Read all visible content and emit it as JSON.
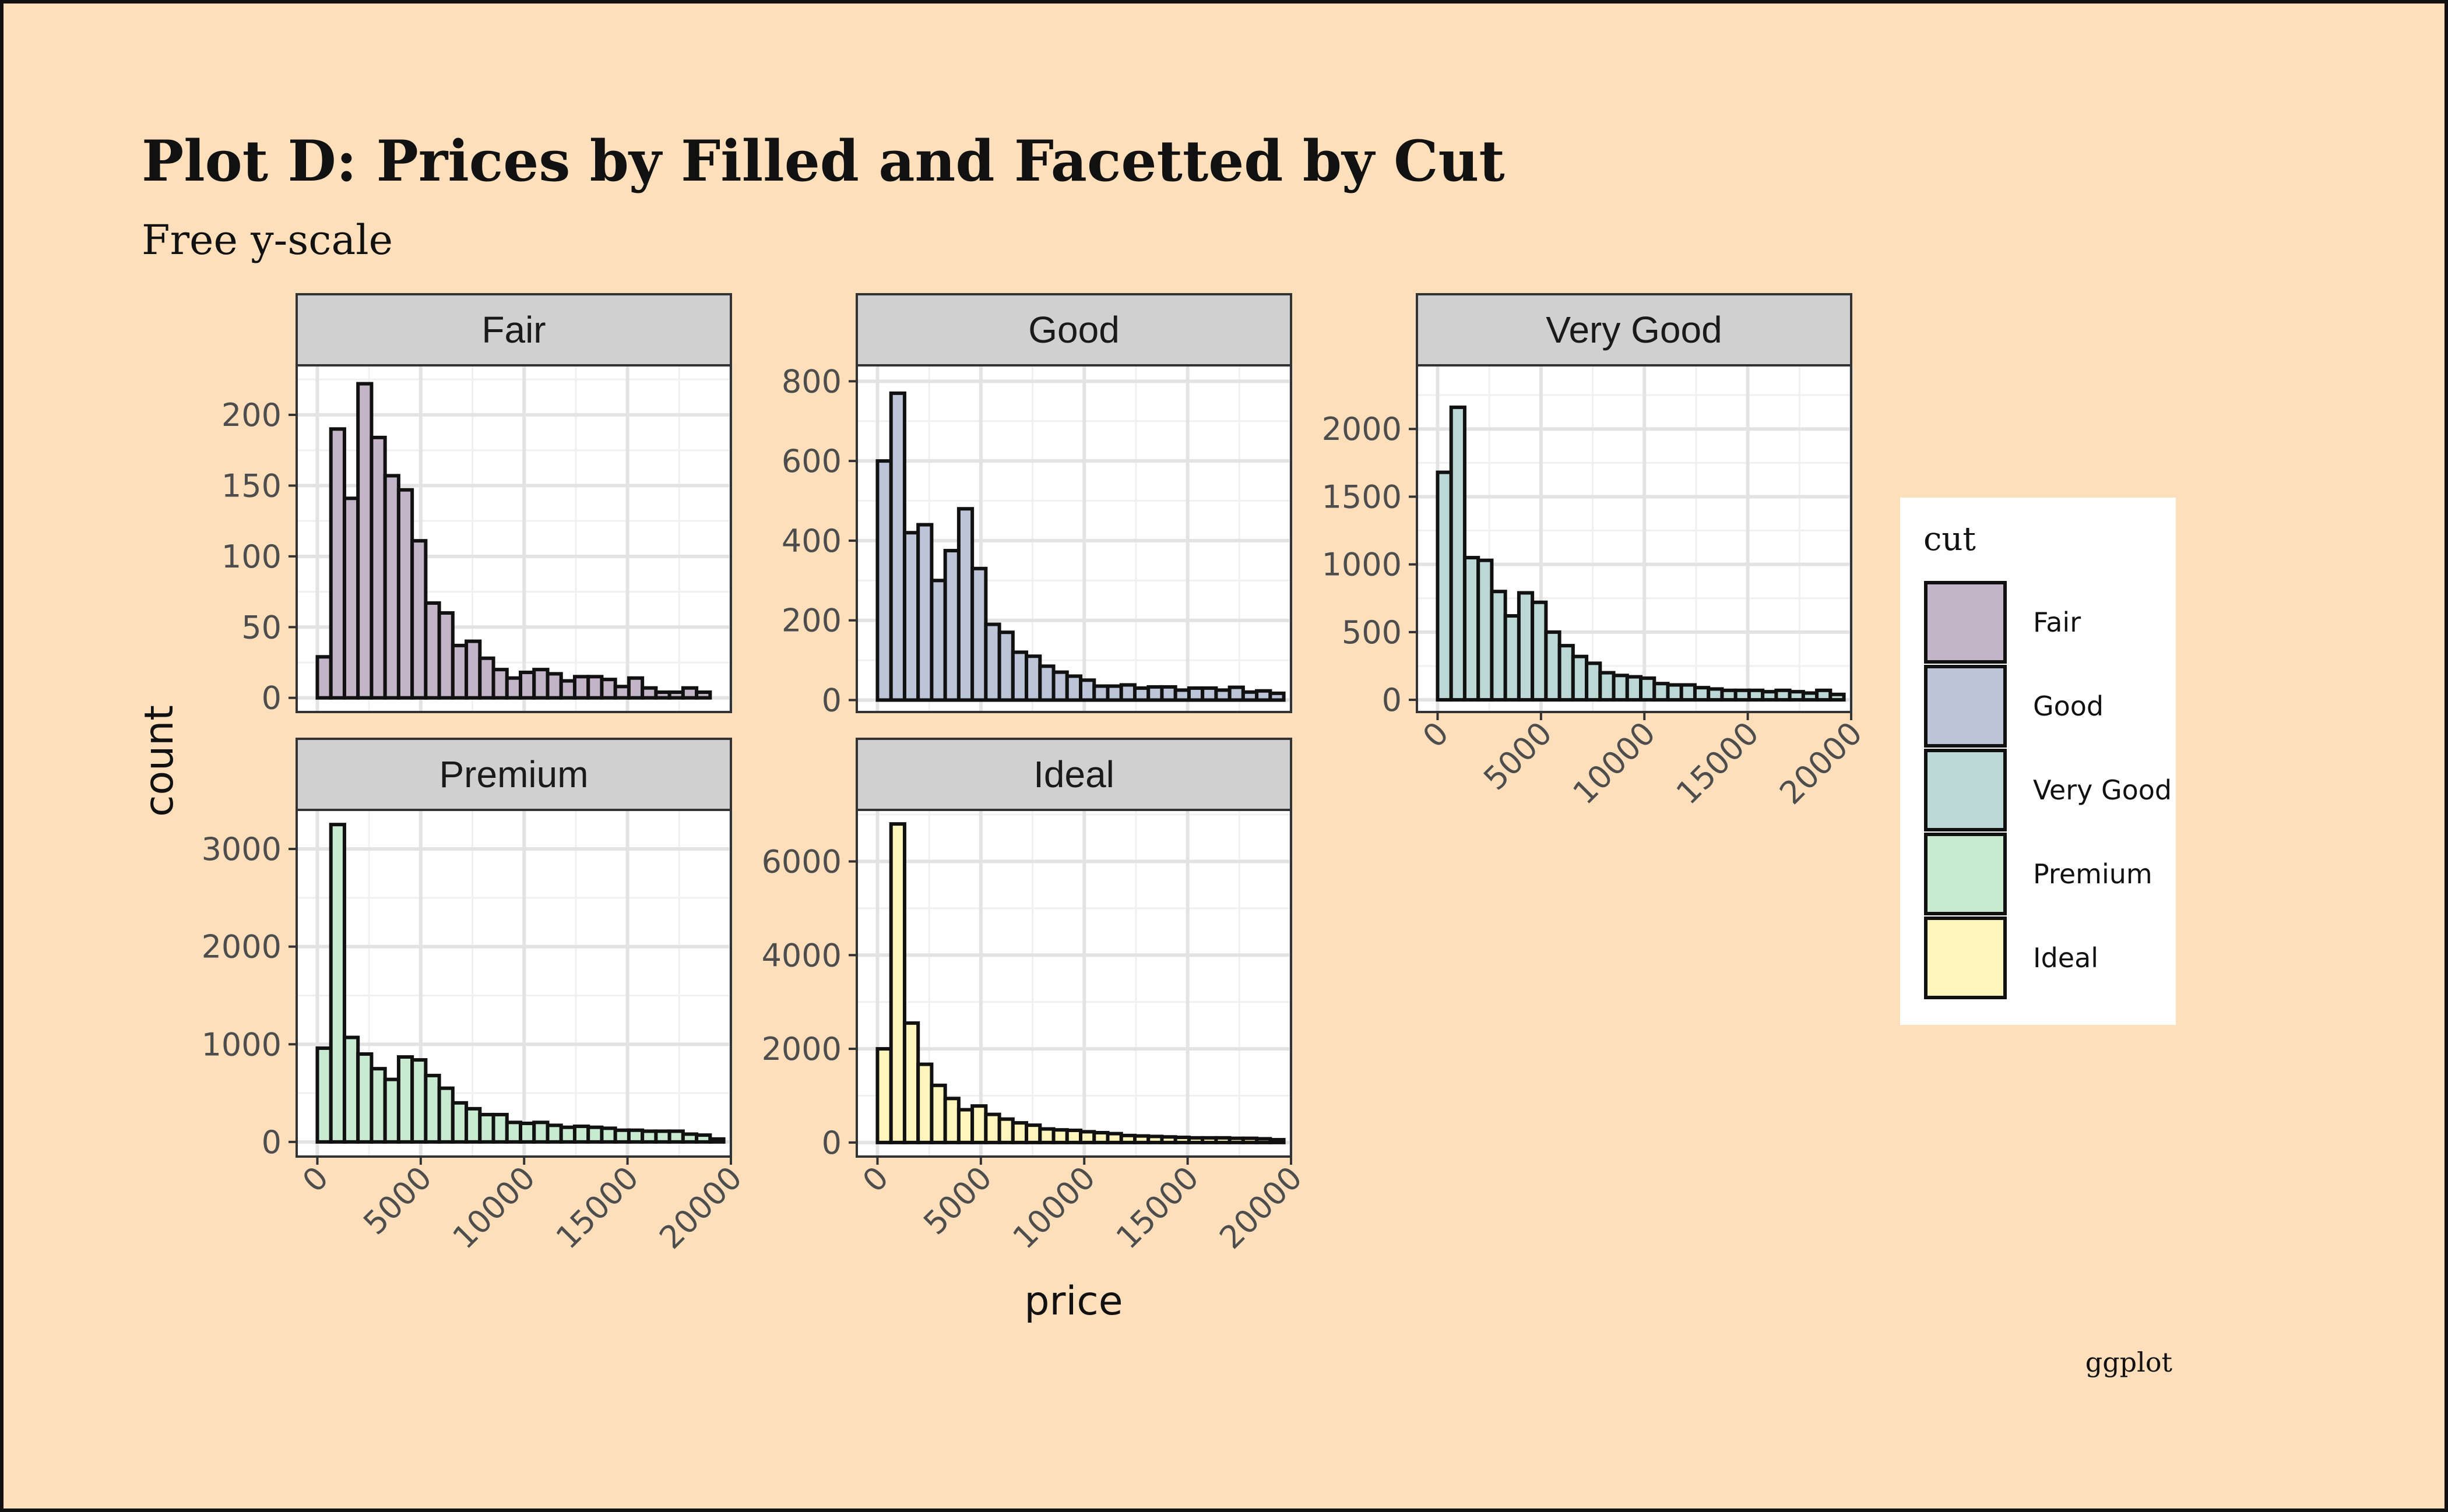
{
  "chart_data": {
    "type": "bar",
    "title": "Plot D: Prices by Filled and Facetted by Cut",
    "subtitle": "Free y-scale",
    "xlabel": "price",
    "ylabel": "count",
    "caption": "ggplot",
    "legend_title": "cut",
    "legend_placement": "right",
    "grid": true,
    "xlim": [
      -1000,
      20000
    ],
    "x_ticks": [
      0,
      5000,
      10000,
      15000,
      20000
    ],
    "x_tick_labels": [
      "0",
      "5000",
      "10000",
      "15000",
      "20000"
    ],
    "bin_width": 655,
    "bin_starts": [
      0,
      655,
      1310,
      1965,
      2620,
      3275,
      3930,
      4585,
      5240,
      5895,
      6550,
      7205,
      7860,
      8515,
      9170,
      9825,
      10480,
      11135,
      11790,
      12445,
      13100,
      13755,
      14410,
      15065,
      15720,
      16375,
      17030,
      17685,
      18340,
      18995
    ],
    "series": [
      {
        "name": "Fair",
        "color": "#c3b4c8",
        "ylim": [
          -10,
          235
        ],
        "y_ticks": [
          0,
          50,
          100,
          150,
          200
        ],
        "y_tick_labels": [
          "0",
          "50",
          "100",
          "150",
          "200"
        ],
        "values": [
          29,
          190,
          141,
          222,
          184,
          157,
          147,
          111,
          67,
          60,
          37,
          40,
          28,
          20,
          14,
          18,
          20,
          17,
          12,
          15,
          15,
          13,
          8,
          14,
          7,
          4,
          4,
          7,
          4,
          0
        ]
      },
      {
        "name": "Good",
        "color": "#bcc4d8",
        "ylim": [
          -30,
          840
        ],
        "y_ticks": [
          0,
          200,
          400,
          600,
          800
        ],
        "y_tick_labels": [
          "0",
          "200",
          "400",
          "600",
          "800"
        ],
        "values": [
          600,
          770,
          420,
          440,
          300,
          375,
          480,
          330,
          190,
          170,
          120,
          110,
          85,
          70,
          60,
          50,
          35,
          35,
          38,
          30,
          33,
          33,
          25,
          30,
          30,
          25,
          32,
          20,
          23,
          17
        ]
      },
      {
        "name": "Very Good",
        "color": "#bbd8d6",
        "ylim": [
          -90,
          2470
        ],
        "y_ticks": [
          0,
          500,
          1000,
          1500,
          2000
        ],
        "y_tick_labels": [
          "0",
          "500",
          "1000",
          "1500",
          "2000"
        ],
        "values": [
          1680,
          2160,
          1050,
          1030,
          800,
          620,
          790,
          720,
          500,
          400,
          320,
          270,
          200,
          180,
          170,
          160,
          120,
          110,
          110,
          90,
          80,
          70,
          70,
          70,
          60,
          70,
          60,
          50,
          70,
          40
        ]
      },
      {
        "name": "Premium",
        "color": "#c8ead0",
        "ylim": [
          -150,
          3400
        ],
        "y_ticks": [
          0,
          1000,
          2000,
          3000
        ],
        "y_tick_labels": [
          "0",
          "1000",
          "2000",
          "3000"
        ],
        "values": [
          960,
          3250,
          1070,
          900,
          750,
          640,
          870,
          840,
          680,
          550,
          400,
          340,
          280,
          280,
          200,
          190,
          200,
          170,
          150,
          160,
          150,
          140,
          120,
          120,
          110,
          110,
          110,
          80,
          70,
          30
        ]
      },
      {
        "name": "Ideal",
        "color": "#fdf5bc",
        "ylim": [
          -300,
          7100
        ],
        "y_ticks": [
          0,
          2000,
          4000,
          6000
        ],
        "y_tick_labels": [
          "0",
          "2000",
          "4000",
          "6000"
        ],
        "values": [
          2000,
          6800,
          2550,
          1670,
          1220,
          940,
          700,
          780,
          600,
          500,
          420,
          370,
          290,
          270,
          260,
          230,
          210,
          190,
          150,
          140,
          130,
          120,
          110,
          100,
          100,
          100,
          90,
          90,
          80,
          60
        ]
      }
    ]
  }
}
